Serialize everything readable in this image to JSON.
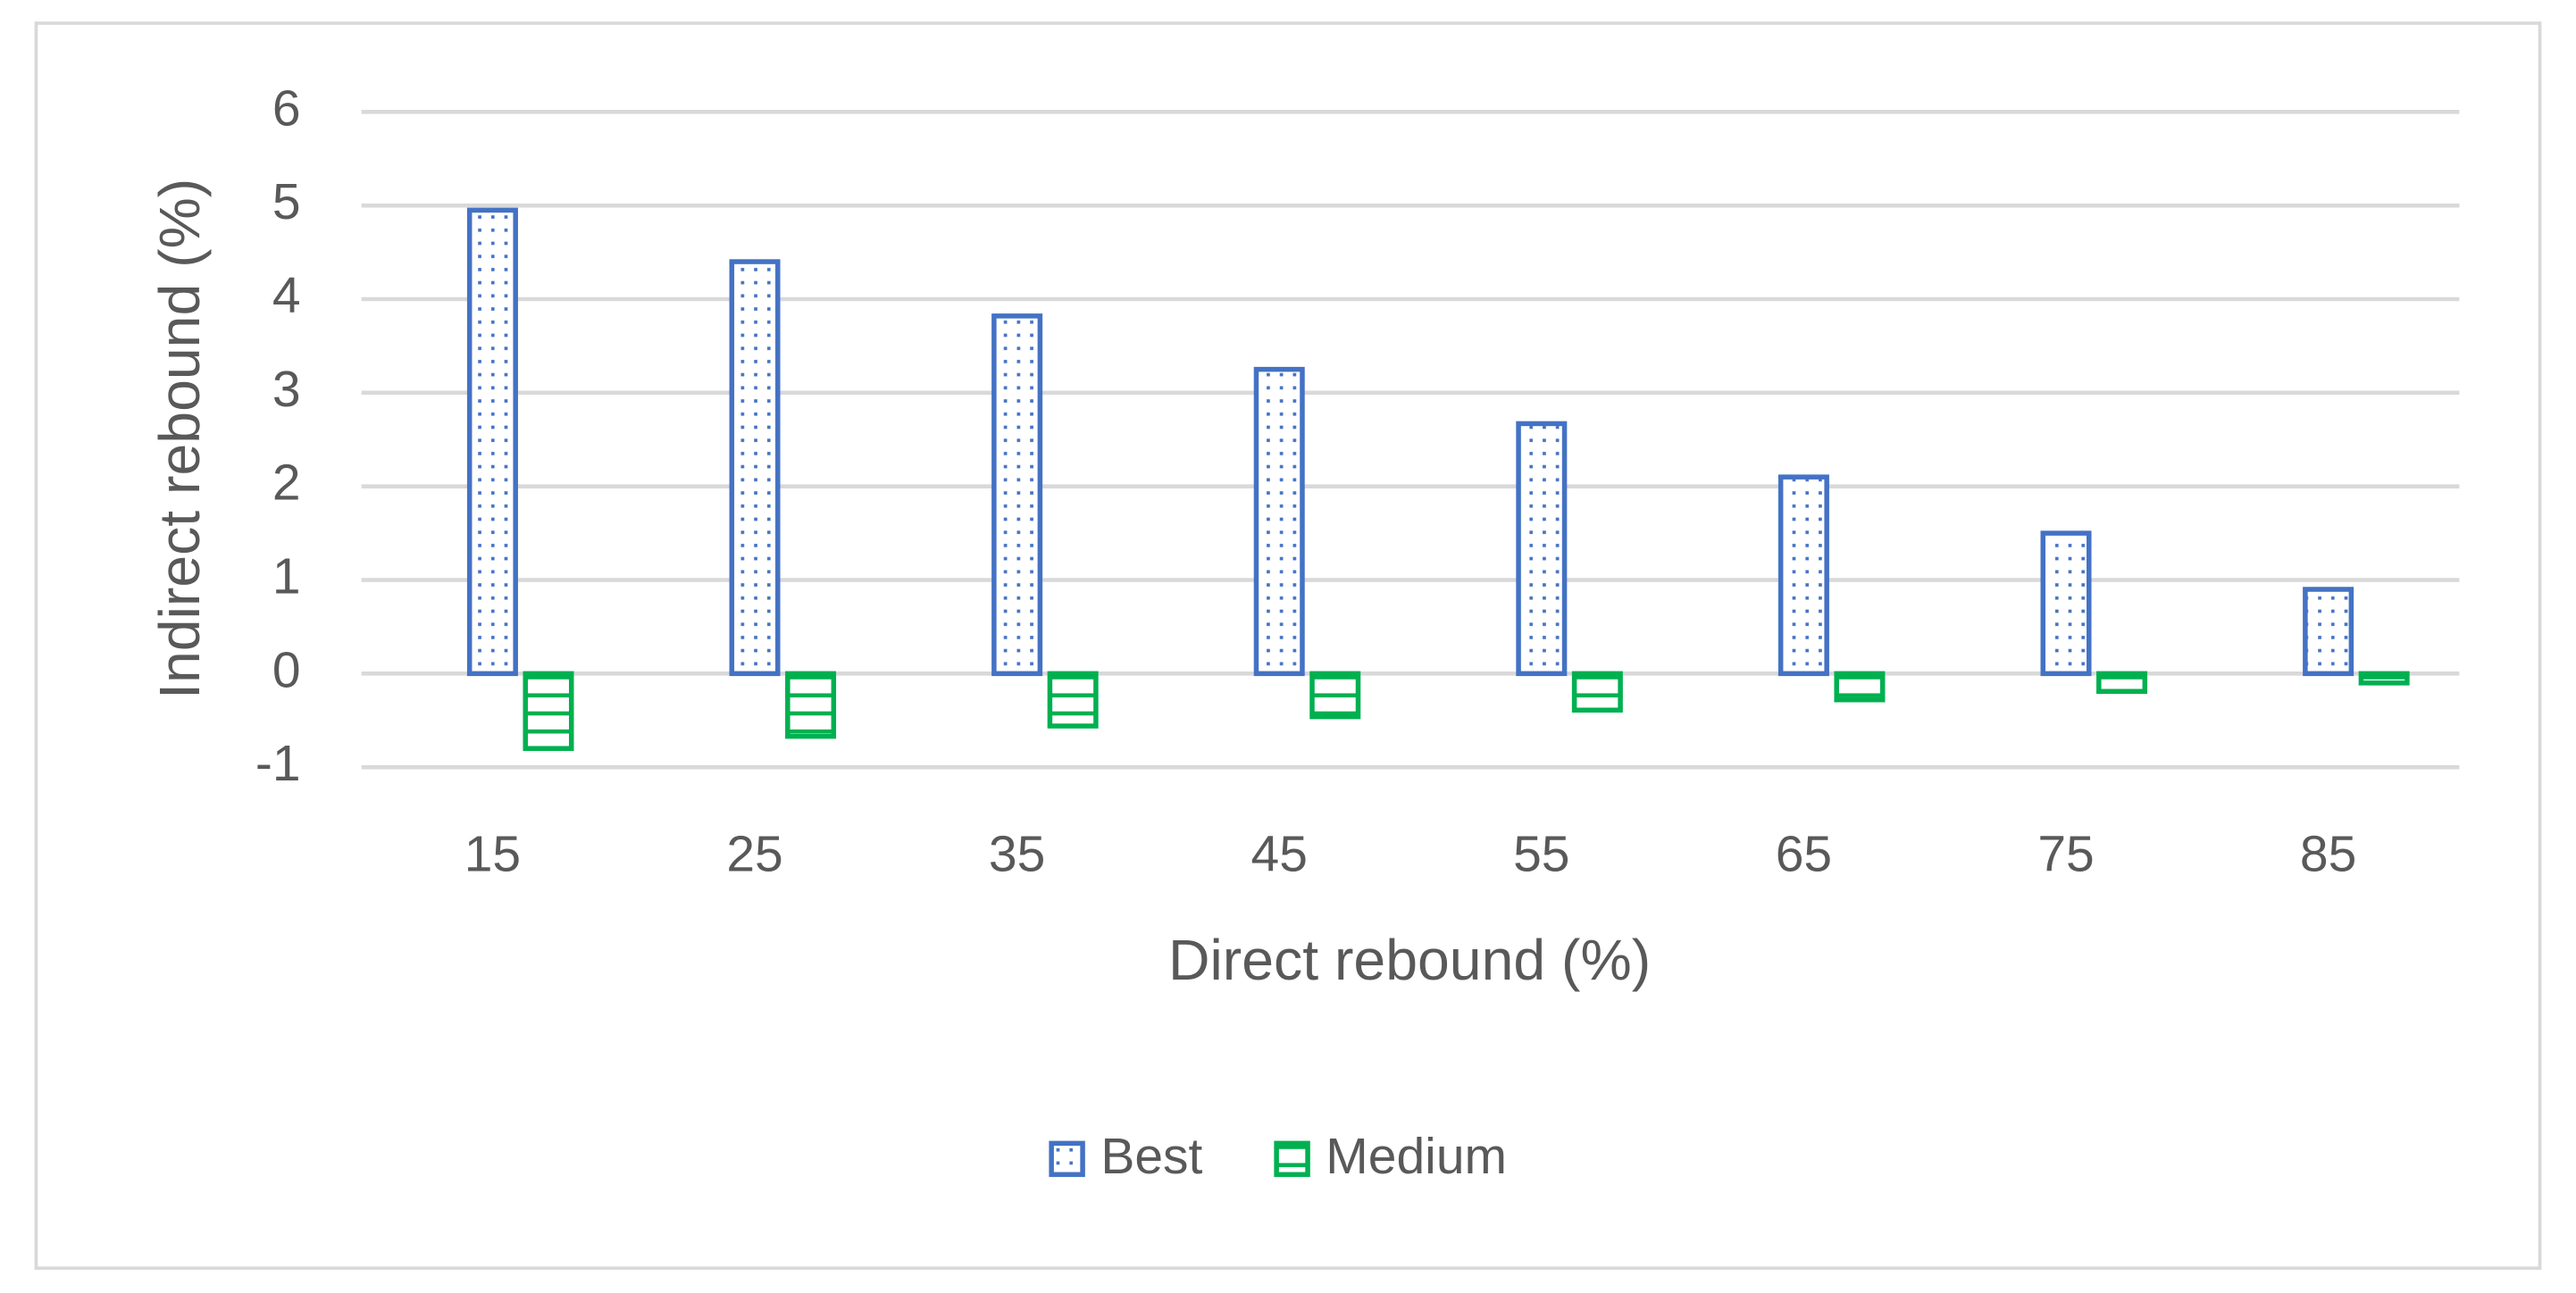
{
  "chart_data": {
    "type": "bar",
    "x_label": "Direct rebound (%)",
    "y_label": "Indirect rebound (%)",
    "categories": [
      "15",
      "25",
      "35",
      "45",
      "55",
      "65",
      "75",
      "85"
    ],
    "series": [
      {
        "name": "Best",
        "color": "#4472c4",
        "values": [
          4.95,
          4.4,
          3.82,
          3.25,
          2.67,
          2.1,
          1.5,
          0.9
        ]
      },
      {
        "name": "Medium",
        "color": "#00b050",
        "values": [
          -0.8,
          -0.67,
          -0.56,
          -0.46,
          -0.39,
          -0.28,
          -0.19,
          -0.1
        ]
      }
    ],
    "ylim": [
      -1,
      6
    ],
    "yticks": [
      -1,
      0,
      1,
      2,
      3,
      4,
      5,
      6
    ],
    "grid": true,
    "legend": "bottom"
  }
}
